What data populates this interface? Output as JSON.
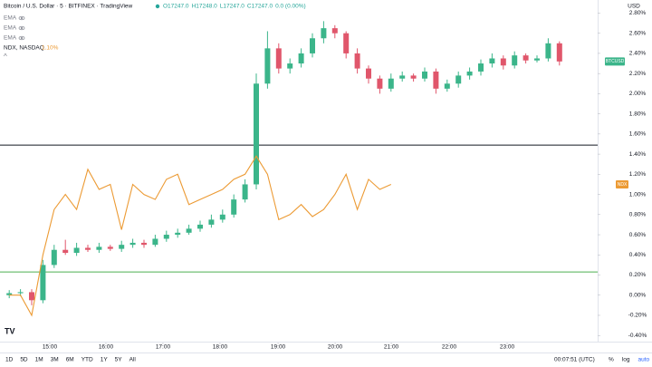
{
  "chart_data": {
    "type": "candlestick",
    "title": "Bitcoin / U.S. Dollar · 5 · BITFINEX · TradingView",
    "ohlc_header": [
      "O17247.0",
      "H17248.0",
      "L17247.0",
      "C17247.0",
      "0.0 (0.00%)"
    ],
    "indicators": [
      "EMA",
      "EMA",
      "EMA"
    ],
    "compare_label": "NDX, NASDAQ",
    "compare_value": "1.10%",
    "currency": "USD",
    "up_color": "#3bb58a",
    "down_color": "#e0566b",
    "categories": [
      null,
      null,
      null,
      null,
      null,
      null,
      null,
      null,
      null,
      null,
      null,
      null,
      null,
      null,
      null,
      null,
      null,
      null,
      null,
      null,
      null,
      null,
      null,
      null,
      null,
      null,
      null,
      null,
      null,
      null,
      null,
      null,
      null,
      null,
      null,
      null,
      null,
      null,
      null,
      null,
      null,
      null,
      null,
      null,
      null,
      null,
      null,
      null,
      null,
      null
    ],
    "series": [
      {
        "name": "BTCUSD",
        "color": "#3bb58a",
        "open": [
          0.0,
          0.02,
          0.03,
          -0.05,
          0.3,
          0.45,
          0.42,
          0.47,
          0.45,
          0.48,
          0.46,
          0.5,
          0.52,
          0.5,
          0.56,
          0.6,
          0.62,
          0.66,
          0.7,
          0.75,
          0.8,
          0.95,
          1.1,
          2.1,
          2.45,
          2.25,
          2.3,
          2.4,
          2.55,
          2.65,
          2.6,
          2.4,
          2.25,
          2.15,
          2.05,
          2.15,
          2.18,
          2.15,
          2.22,
          2.05,
          2.1,
          2.18,
          2.22,
          2.3,
          2.35,
          2.28,
          2.38,
          2.33,
          2.35,
          2.5
        ],
        "high": [
          0.05,
          0.06,
          0.06,
          0.35,
          0.5,
          0.55,
          0.52,
          0.5,
          0.52,
          0.5,
          0.54,
          0.56,
          0.55,
          0.6,
          0.64,
          0.66,
          0.7,
          0.74,
          0.8,
          0.85,
          1.0,
          1.15,
          2.2,
          2.62,
          2.5,
          2.35,
          2.45,
          2.6,
          2.72,
          2.68,
          2.62,
          2.45,
          2.28,
          2.18,
          2.2,
          2.22,
          2.2,
          2.26,
          2.25,
          2.14,
          2.22,
          2.26,
          2.34,
          2.4,
          2.38,
          2.42,
          2.4,
          2.38,
          2.55,
          2.52
        ],
        "low": [
          -0.03,
          -0.01,
          -0.1,
          -0.08,
          0.27,
          0.4,
          0.39,
          0.43,
          0.42,
          0.44,
          0.43,
          0.47,
          0.47,
          0.48,
          0.53,
          0.57,
          0.6,
          0.63,
          0.67,
          0.72,
          0.77,
          0.92,
          1.05,
          2.05,
          2.2,
          2.2,
          2.26,
          2.36,
          2.5,
          2.55,
          2.35,
          2.2,
          2.1,
          2.0,
          2.02,
          2.12,
          2.12,
          2.12,
          2.0,
          2.02,
          2.06,
          2.14,
          2.18,
          2.26,
          2.24,
          2.25,
          2.3,
          2.31,
          2.32,
          2.28
        ],
        "close": [
          0.02,
          0.03,
          -0.05,
          0.3,
          0.45,
          0.42,
          0.47,
          0.45,
          0.48,
          0.46,
          0.5,
          0.52,
          0.5,
          0.56,
          0.6,
          0.62,
          0.66,
          0.7,
          0.75,
          0.8,
          0.95,
          1.1,
          2.1,
          2.45,
          2.25,
          2.3,
          2.4,
          2.55,
          2.65,
          2.6,
          2.4,
          2.25,
          2.15,
          2.05,
          2.15,
          2.18,
          2.15,
          2.22,
          2.05,
          2.1,
          2.18,
          2.22,
          2.3,
          2.35,
          2.28,
          2.38,
          2.33,
          2.35,
          2.5,
          2.32
        ]
      },
      {
        "name": "NDX",
        "color": "#ec9a33",
        "values": [
          0.0,
          0.0,
          -0.2,
          0.4,
          0.85,
          1.0,
          0.85,
          1.25,
          1.05,
          1.1,
          0.65,
          1.1,
          1.0,
          0.95,
          1.15,
          1.2,
          0.9,
          0.95,
          1.0,
          1.05,
          1.15,
          1.2,
          1.38,
          1.2,
          0.75,
          0.8,
          0.9,
          0.78,
          0.85,
          1.0,
          1.2,
          0.85,
          1.15,
          1.05,
          1.1,
          null,
          null,
          null,
          null,
          null,
          null,
          null,
          null,
          null,
          null,
          null,
          null,
          null,
          null,
          null
        ]
      }
    ],
    "hlines": [
      {
        "value": 1.49,
        "color": "#131722"
      },
      {
        "value": 0.23,
        "color": "#4caf50"
      }
    ],
    "ylim": [
      -0.47,
      2.93
    ],
    "yticks": [
      {
        "value": -0.4,
        "label": "-0.40%"
      },
      {
        "value": -0.2,
        "label": "-0.20%"
      },
      {
        "value": 0,
        "label": "0.00%"
      },
      {
        "value": 0.2,
        "label": "0.20%"
      },
      {
        "value": 0.4,
        "label": "0.40%"
      },
      {
        "value": 0.6,
        "label": "0.60%"
      },
      {
        "value": 0.8,
        "label": "0.80%"
      },
      {
        "value": 1.0,
        "label": "1.00%"
      },
      {
        "value": 1.2,
        "label": "1.20%"
      },
      {
        "value": 1.4,
        "label": "1.40%"
      },
      {
        "value": 1.6,
        "label": "1.60%"
      },
      {
        "value": 1.8,
        "label": "1.80%"
      },
      {
        "value": 2.0,
        "label": "2.00%"
      },
      {
        "value": 2.2,
        "label": "2.20%"
      },
      {
        "value": 2.4,
        "label": "2.40%"
      },
      {
        "value": 2.6,
        "label": "2.60%"
      },
      {
        "value": 2.8,
        "label": "2.80%"
      }
    ],
    "xticks": [
      {
        "value": 3.61,
        "label": "15:00"
      },
      {
        "value": 8.61,
        "label": "16:00"
      },
      {
        "value": 13.69,
        "label": "17:00"
      },
      {
        "value": 18.77,
        "label": "18:00"
      },
      {
        "value": 23.94,
        "label": "19:00"
      },
      {
        "value": 29.02,
        "label": "20:00"
      },
      {
        "value": 34.02,
        "label": "21:00"
      },
      {
        "value": 39.18,
        "label": "22:00"
      },
      {
        "value": 44.34,
        "label": "23:00"
      }
    ],
    "grid": false,
    "ranges": [
      "1D",
      "5D",
      "1M",
      "3M",
      "6M",
      "YTD",
      "1Y",
      "5Y",
      "All"
    ],
    "clock": "00:07:51 (UTC)",
    "scale_options": [
      "%",
      "log",
      "auto"
    ]
  }
}
